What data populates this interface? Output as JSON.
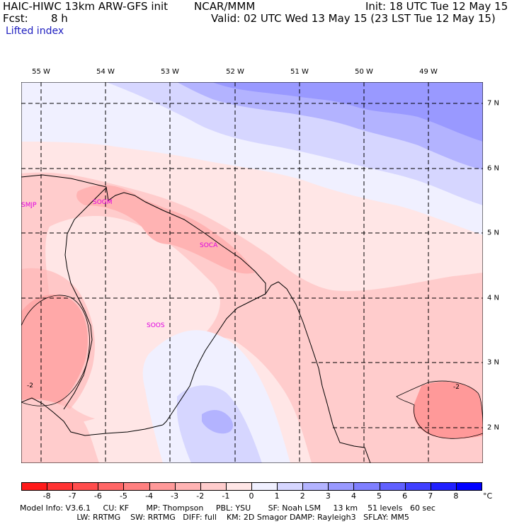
{
  "header": {
    "model_title": "HAIC-HIWC 13km ARW-GFS init",
    "org": "NCAR/MMM",
    "init": "Init: 18 UTC Tue 12 May 15",
    "fcst_label": "Fcst:",
    "fcst_value": "8 h",
    "valid": "Valid: 02 UTC Wed 13 May 15 (23 LST Tue 12 May 15)",
    "field_name": "Lifted index"
  },
  "map": {
    "longitude_labels": [
      "55 W",
      "54 W",
      "53 W",
      "52 W",
      "51 W",
      "50 W",
      "49 W"
    ],
    "latitude_labels": [
      "7 N",
      "6 N",
      "5 N",
      "4 N",
      "3 N",
      "2 N"
    ],
    "station_labels": [
      "SMJP",
      "SOGM",
      "SOCA",
      "SOOS"
    ],
    "contour_labels": [
      "-2",
      "-2"
    ]
  },
  "colorbar": {
    "ticks": [
      "-8",
      "-7",
      "-6",
      "-5",
      "-4",
      "-3",
      "-2",
      "-1",
      "0",
      "1",
      "2",
      "3",
      "4",
      "5",
      "6",
      "7",
      "8"
    ],
    "unit": "°C",
    "colors": [
      "#ff1a1a",
      "#ff3333",
      "#ff4d4d",
      "#ff6666",
      "#ff8080",
      "#ff9999",
      "#ffb3b3",
      "#ffcccc",
      "#ffe6e6",
      "#f0f0ff",
      "#d6d6ff",
      "#b3b3ff",
      "#9999ff",
      "#7f7fff",
      "#6060ff",
      "#4040ff",
      "#2020ff",
      "#0000ff"
    ]
  },
  "footer": {
    "line1": "Model Info: V3.6.1     CU: KF       MP: Thompson     PBL: YSU       SF: Noah LSM     13 km    51 levels   60 sec",
    "line2": "                       LW: RRTMG    SW: RRTMG   DIFF: full    KM: 2D Smagor DAMP: Rayleigh3   SFLAY: MM5"
  }
}
